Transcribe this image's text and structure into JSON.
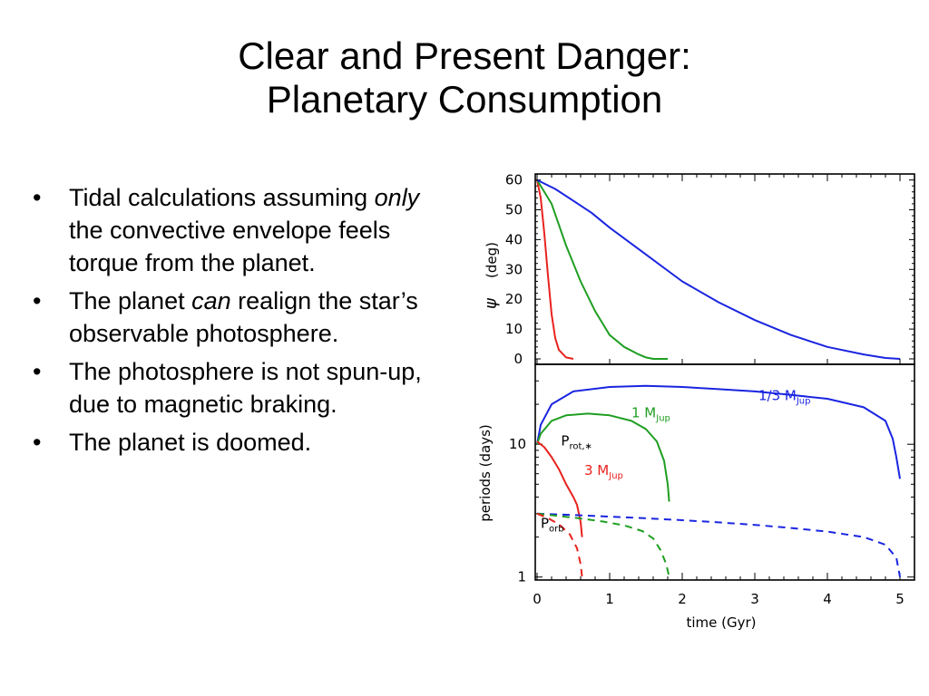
{
  "slide": {
    "title_line1": "Clear and Present Danger:",
    "title_line2": "Planetary Consumption",
    "bullets": [
      {
        "pre": "Tidal calculations assuming ",
        "em": "only",
        "post": " the convective envelope feels torque from the planet."
      },
      {
        "pre": "The planet ",
        "em": "can",
        "post": " realign the star’s observable photosphere."
      },
      {
        "pre": "The photosphere is not spun-up, due to magnetic braking.",
        "em": "",
        "post": ""
      },
      {
        "pre": "The planet is doomed.",
        "em": "",
        "post": ""
      }
    ],
    "bullet_glyph": "•"
  },
  "chart_data": [
    {
      "type": "line",
      "panel": "top",
      "ylabel_symbol": "ψ",
      "ylabel_text": "(deg)",
      "ylim": [
        0,
        62
      ],
      "xlim": [
        0,
        5.2
      ],
      "yticks": [
        0,
        10,
        20,
        30,
        40,
        50,
        60
      ],
      "series": [
        {
          "color": "#e8221e",
          "x": [
            0,
            0.05,
            0.1,
            0.15,
            0.2,
            0.25,
            0.3,
            0.4,
            0.5
          ],
          "y": [
            60,
            54,
            42,
            28,
            15,
            7,
            3,
            0.5,
            0
          ]
        },
        {
          "color": "#1f9e22",
          "x": [
            0,
            0.2,
            0.4,
            0.6,
            0.8,
            1.0,
            1.2,
            1.4,
            1.5,
            1.6,
            1.8
          ],
          "y": [
            60,
            52,
            38,
            26,
            16,
            8,
            4,
            1.5,
            0.5,
            0,
            0
          ]
        },
        {
          "color": "#1a25e0",
          "x": [
            0,
            0.25,
            0.5,
            0.75,
            1.0,
            1.5,
            2.0,
            2.5,
            3.0,
            3.5,
            4.0,
            4.5,
            4.8,
            5.0
          ],
          "y": [
            60,
            57,
            53,
            49,
            44,
            35,
            26,
            19,
            13,
            8,
            4,
            1.5,
            0.3,
            0
          ]
        }
      ]
    },
    {
      "type": "line",
      "panel": "bottom",
      "ylabel": "periods (days)",
      "xlabel": "time (Gyr)",
      "y_scale": "log",
      "ylim": [
        0.95,
        40
      ],
      "xlim": [
        0,
        5.2
      ],
      "xticks": [
        0,
        1,
        2,
        3,
        4,
        5
      ],
      "yticks": [
        1,
        10
      ],
      "series": [
        {
          "color": "#1a25e0",
          "style": "solid",
          "label": "1/3 M",
          "label_sub": "Jup",
          "x": [
            0,
            0.05,
            0.2,
            0.5,
            1.0,
            1.5,
            2.0,
            2.5,
            3.0,
            3.5,
            4.0,
            4.5,
            4.8,
            4.9,
            4.95,
            5.0
          ],
          "y": [
            10,
            14,
            20,
            25,
            27,
            27.5,
            27,
            26,
            25,
            23.5,
            22,
            19,
            15,
            11,
            8,
            5.5
          ]
        },
        {
          "color": "#1f9e22",
          "style": "solid",
          "label": "1 M",
          "label_sub": "Jup",
          "x": [
            0,
            0.05,
            0.2,
            0.4,
            0.7,
            1.0,
            1.3,
            1.5,
            1.65,
            1.75,
            1.8,
            1.82
          ],
          "y": [
            10,
            12,
            15,
            16.5,
            17,
            16.5,
            15,
            13,
            10.5,
            7.5,
            5,
            3.7
          ]
        },
        {
          "color": "#e8221e",
          "style": "solid",
          "label": "3 M",
          "label_sub": "Jup",
          "x": [
            0,
            0.1,
            0.2,
            0.3,
            0.4,
            0.5,
            0.55,
            0.6,
            0.62
          ],
          "y": [
            10.5,
            9.5,
            8,
            6.5,
            5,
            4,
            3.5,
            2.6,
            2.0
          ]
        },
        {
          "color": "#1a25e0",
          "style": "dashed",
          "x": [
            0,
            0.5,
            1.0,
            1.5,
            2.0,
            2.5,
            3.0,
            3.5,
            4.0,
            4.5,
            4.8,
            4.95,
            5.0
          ],
          "y": [
            3.0,
            2.93,
            2.85,
            2.77,
            2.68,
            2.58,
            2.47,
            2.34,
            2.2,
            2.0,
            1.75,
            1.4,
            1.0
          ]
        },
        {
          "color": "#1f9e22",
          "style": "dashed",
          "x": [
            0,
            0.3,
            0.6,
            0.9,
            1.2,
            1.45,
            1.6,
            1.7,
            1.78,
            1.82
          ],
          "y": [
            3.0,
            2.88,
            2.76,
            2.62,
            2.45,
            2.22,
            1.95,
            1.6,
            1.25,
            1.0
          ]
        },
        {
          "color": "#e8221e",
          "style": "dashed",
          "x": [
            0,
            0.15,
            0.3,
            0.45,
            0.55,
            0.6,
            0.62
          ],
          "y": [
            3.0,
            2.78,
            2.5,
            2.1,
            1.65,
            1.25,
            1.0
          ]
        }
      ],
      "annotations": [
        {
          "text": "P",
          "sub": "rot,∗",
          "x": 0.33,
          "y": 9.8
        },
        {
          "text": "P",
          "sub": "orb",
          "x": 0.05,
          "y": 2.35
        }
      ]
    }
  ]
}
